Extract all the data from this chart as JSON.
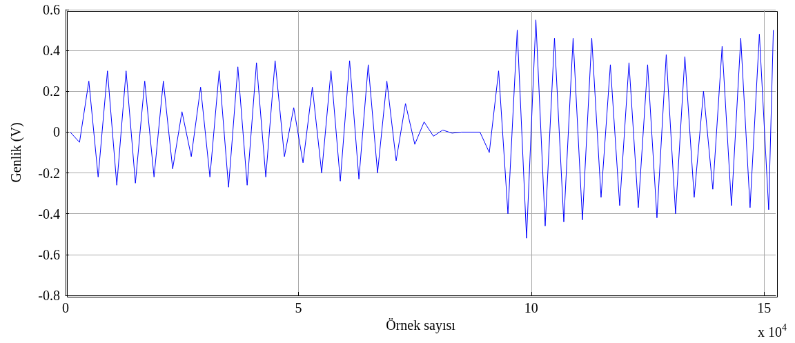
{
  "chart_data": {
    "type": "line",
    "xlabel": "Örnek sayısı",
    "ylabel": "Genlik (V)",
    "annotations": [
      "x 10$^{4}$"
    ],
    "xlim": [
      0,
      15.25
    ],
    "xticks": [
      0,
      5,
      10,
      15
    ],
    "ylim": [
      -0.8,
      0.6
    ],
    "yticks": [
      -0.8,
      -0.6,
      -0.4,
      -0.2,
      0,
      0.2,
      0.4,
      0.6
    ],
    "grid": true,
    "marker": "none",
    "line_style": "solid",
    "series": [
      {
        "color": "#0000ff",
        "x": [
          0.1,
          0.3,
          0.5,
          0.7,
          0.9,
          1.1,
          1.3,
          1.5,
          1.7,
          1.9,
          2.1,
          2.3,
          2.5,
          2.7,
          2.9,
          3.1,
          3.3,
          3.5,
          3.7,
          3.9,
          4.1,
          4.3,
          4.5,
          4.7,
          4.9,
          5.1,
          5.3,
          5.5,
          5.7,
          5.9,
          6.1,
          6.3,
          6.5,
          6.7,
          6.9,
          7.1,
          7.3,
          7.5,
          7.7,
          7.9,
          8.1,
          8.3,
          8.5,
          8.7,
          8.9,
          9.1,
          9.3,
          9.5,
          9.7,
          9.9,
          10.1,
          10.3,
          10.5,
          10.7,
          10.9,
          11.1,
          11.3,
          11.5,
          11.7,
          11.9,
          12.1,
          12.3,
          12.5,
          12.7,
          12.9,
          13.1,
          13.3,
          13.5,
          13.7,
          13.9,
          14.1,
          14.3,
          14.5,
          14.7,
          14.9,
          15.1,
          15.2
        ],
        "values": [
          0,
          -0.05,
          0.25,
          -0.22,
          0.3,
          -0.26,
          0.3,
          -0.25,
          0.25,
          -0.22,
          0.25,
          -0.18,
          0.1,
          -0.12,
          0.22,
          -0.22,
          0.3,
          -0.27,
          0.32,
          -0.26,
          0.34,
          -0.22,
          0.35,
          -0.12,
          0.12,
          -0.15,
          0.22,
          -0.2,
          0.3,
          -0.24,
          0.35,
          -0.23,
          0.33,
          -0.2,
          0.25,
          -0.14,
          0.14,
          -0.06,
          0.05,
          -0.02,
          0.01,
          -0.005,
          0,
          0,
          0,
          -0.1,
          0.3,
          -0.4,
          0.5,
          -0.52,
          0.55,
          -0.46,
          0.46,
          -0.44,
          0.46,
          -0.43,
          0.46,
          -0.32,
          0.33,
          -0.36,
          0.34,
          -0.37,
          0.33,
          -0.42,
          0.38,
          -0.4,
          0.37,
          -0.32,
          0.2,
          -0.28,
          0.42,
          -0.36,
          0.46,
          -0.37,
          0.48,
          -0.38,
          0.5
        ]
      }
    ]
  }
}
